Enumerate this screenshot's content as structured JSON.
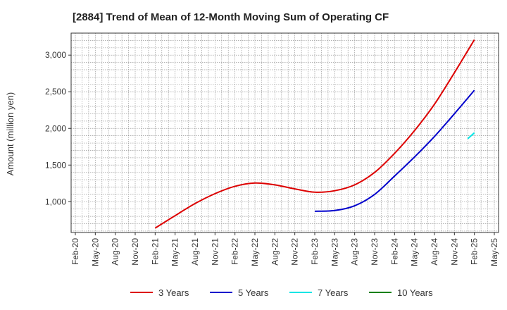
{
  "chart_data": {
    "type": "line",
    "title": "[2884]  Trend of Mean of 12-Month Moving Sum of Operating CF",
    "xlabel": "",
    "ylabel": "Amount (million yen)",
    "ylim": [
      580,
      3300
    ],
    "yticks": [
      1000,
      1500,
      2000,
      2500,
      3000
    ],
    "ytick_labels": [
      "1,000",
      "1,500",
      "2,000",
      "2,500",
      "3,000"
    ],
    "x_categories": [
      "Feb-20",
      "May-20",
      "Aug-20",
      "Nov-20",
      "Feb-21",
      "May-21",
      "Aug-21",
      "Nov-21",
      "Feb-22",
      "May-22",
      "Aug-22",
      "Nov-22",
      "Feb-23",
      "May-23",
      "Aug-23",
      "Nov-23",
      "Feb-24",
      "May-24",
      "Aug-24",
      "Nov-24",
      "Feb-25",
      "May-25"
    ],
    "grid": true,
    "legend_position": "bottom",
    "series": [
      {
        "name": "3 Years",
        "color": "#dd0000",
        "x": [
          4,
          5,
          6,
          7,
          8,
          9,
          10,
          11,
          12,
          13,
          14,
          15,
          16,
          17,
          18,
          19,
          20
        ],
        "values": [
          640,
          810,
          975,
          1110,
          1210,
          1255,
          1230,
          1175,
          1130,
          1150,
          1230,
          1400,
          1660,
          1970,
          2330,
          2760,
          3210
        ]
      },
      {
        "name": "5 Years",
        "color": "#0000cc",
        "x": [
          12,
          13,
          14,
          15,
          16,
          17,
          18,
          19,
          20
        ],
        "values": [
          870,
          880,
          945,
          1100,
          1350,
          1610,
          1890,
          2200,
          2520
        ]
      },
      {
        "name": "7 Years",
        "color": "#00e5e5",
        "x": [
          19.67,
          20
        ],
        "values": [
          1860,
          1940
        ]
      },
      {
        "name": "10 Years",
        "color": "#008000",
        "x": [],
        "values": []
      }
    ]
  }
}
